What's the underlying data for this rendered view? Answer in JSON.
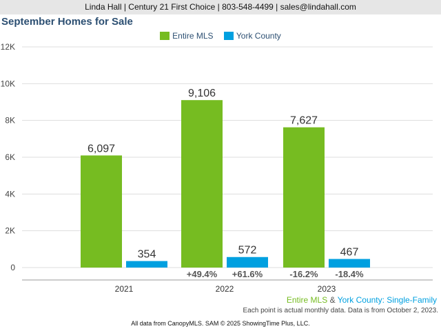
{
  "header": {
    "contact": "Linda Hall | Century 21 First Choice | 803-548-4499 | sales@lindahall.com"
  },
  "colors": {
    "entire_mls": "#76bc21",
    "york_county": "#00a0e0",
    "title": "#2c4f72"
  },
  "chart_data": {
    "type": "bar",
    "title": "September Homes for Sale",
    "xlabel": "",
    "ylabel": "",
    "categories": [
      "2021",
      "2022",
      "2023"
    ],
    "ylim": [
      0,
      12000
    ],
    "yticks": [
      0,
      2000,
      4000,
      6000,
      8000,
      10000,
      12000
    ],
    "ytick_labels": [
      "0",
      "2K",
      "4K",
      "6K",
      "8K",
      "10K",
      "12K"
    ],
    "grid": true,
    "legend_position": "top-center",
    "series": [
      {
        "name": "Entire MLS",
        "color": "#76bc21",
        "values": [
          6097,
          9106,
          7627
        ],
        "value_labels": [
          "6,097",
          "9,106",
          "7,627"
        ],
        "change_labels": [
          "",
          "+49.4%",
          "-16.2%"
        ]
      },
      {
        "name": "York County",
        "color": "#00a0e0",
        "values": [
          354,
          572,
          467
        ],
        "value_labels": [
          "354",
          "572",
          "467"
        ],
        "change_labels": [
          "",
          "+61.6%",
          "-18.4%"
        ]
      }
    ]
  },
  "footer": {
    "series_entire": "Entire MLS",
    "series_amp": " & ",
    "series_york": "York County",
    "series_type": ": Single-Family",
    "note": "Each point is actual monthly data. Data is from October 2, 2023.",
    "source": "All data from CanopyMLS. SAM © 2025 ShowingTime Plus, LLC."
  }
}
